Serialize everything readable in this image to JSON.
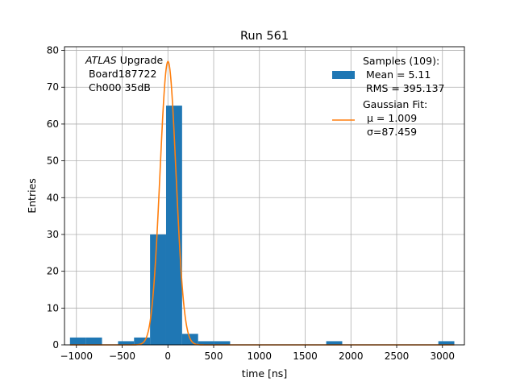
{
  "chart_data": {
    "type": "bar",
    "title": "Run 561",
    "xlabel": "time [ns]",
    "ylabel": "Entries",
    "xlim": [
      -1130,
      3240
    ],
    "ylim": [
      0,
      81
    ],
    "grid": true,
    "xticks": [
      -1000,
      -500,
      0,
      500,
      1000,
      1500,
      2000,
      2500,
      3000
    ],
    "xtick_labels": [
      "−1000",
      "−500",
      "0",
      "500",
      "1000",
      "1500",
      "2000",
      "2500",
      "3000"
    ],
    "yticks": [
      0,
      10,
      20,
      30,
      40,
      50,
      60,
      70,
      80
    ],
    "ytick_labels": [
      "0",
      "10",
      "20",
      "30",
      "40",
      "50",
      "60",
      "70",
      "80"
    ],
    "annotation": {
      "italic_prefix": "ATLAS",
      "line1_rest": " Upgrade",
      "line2": " Board187722",
      "line3": " Ch000 35dB"
    },
    "legend_position": "top-right",
    "histogram": {
      "name": "Samples (109):",
      "stats": [
        " Mean = 5.11",
        " RMS = 395.137"
      ],
      "color": "#1f77b4",
      "bins": [
        {
          "x0": -1070,
          "x1": -895,
          "count": 2
        },
        {
          "x0": -895,
          "x1": -720,
          "count": 2
        },
        {
          "x0": -545,
          "x1": -370,
          "count": 1
        },
        {
          "x0": -370,
          "x1": -195,
          "count": 2
        },
        {
          "x0": -195,
          "x1": -20,
          "count": 30
        },
        {
          "x0": -20,
          "x1": 155,
          "count": 65
        },
        {
          "x0": 155,
          "x1": 330,
          "count": 3
        },
        {
          "x0": 330,
          "x1": 505,
          "count": 1
        },
        {
          "x0": 505,
          "x1": 680,
          "count": 1
        },
        {
          "x0": 1730,
          "x1": 1905,
          "count": 1
        },
        {
          "x0": 2955,
          "x1": 3130,
          "count": 1
        }
      ]
    },
    "fit": {
      "name": "Gaussian Fit:",
      "mu_label": "μ = 1.009",
      "sigma_label": "σ=87.459",
      "mu": 1.009,
      "sigma": 87.459,
      "amplitude": 77,
      "x_range": [
        -1070,
        3130
      ],
      "color": "#ff7f0e"
    }
  }
}
